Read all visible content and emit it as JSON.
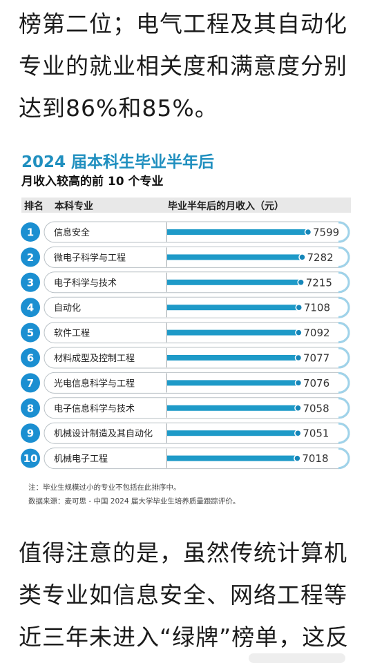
{
  "para_top": "榜第二位；电气工程及其自动化专业的就业相关度和满意度分别达到86%和85%。",
  "para_bottom": "值得注意的是，虽然传统计算机类专业如信息安全、网络工程等近三年未进入“绿牌”榜单，这反",
  "figure": {
    "header": {
      "rank": "排名",
      "major": "本科专业",
      "income": "毕业半年后的月收入（元）"
    },
    "note": "注：毕业生规模过小的专业不包括在此排序中。",
    "source": "数据来源：麦可思 - 中国 2024 届大学毕业生培养质量跟踪评价。",
    "colors": {
      "accent": "#1f8fbf",
      "bar": "#1e9ac8",
      "badge": "#1b8fd1"
    }
  },
  "chart_data": {
    "type": "bar",
    "orientation": "horizontal",
    "title": "2024 届本科生毕业半年后",
    "subtitle": "月收入较高的前 10 个专业",
    "ranks": [
      "1",
      "2",
      "3",
      "4",
      "5",
      "6",
      "7",
      "8",
      "9",
      "10"
    ],
    "categories": [
      "信息安全",
      "微电子科学与工程",
      "电子科学与技术",
      "自动化",
      "软件工程",
      "材料成型及控制工程",
      "光电信息科学与工程",
      "电子信息科学与技术",
      "机械设计制造及其自动化",
      "机械电子工程"
    ],
    "values": [
      7599,
      7282,
      7215,
      7108,
      7092,
      7077,
      7076,
      7058,
      7051,
      7018
    ],
    "xlim": [
      0,
      7599
    ],
    "legend": "none",
    "grid": false
  }
}
